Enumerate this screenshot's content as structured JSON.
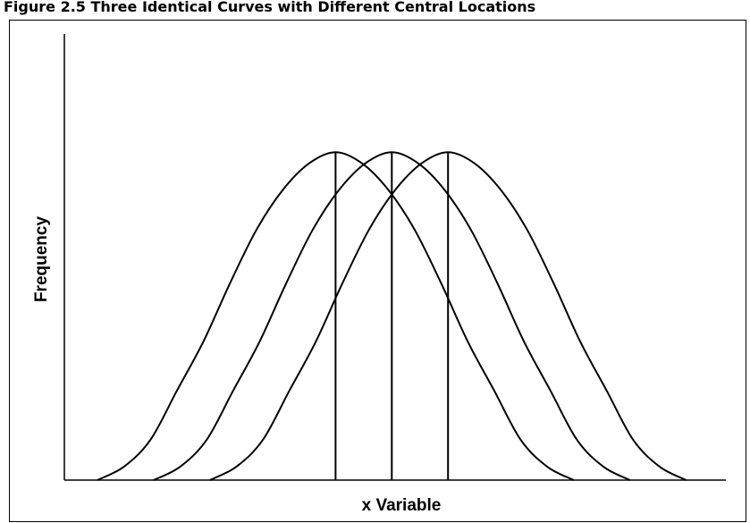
{
  "chart_data": {
    "type": "line",
    "title": "Figure 2.5 Three Identical Curves with Different Central Locations",
    "xlabel": "x Variable",
    "ylabel": "Frequency",
    "xlim": [
      0,
      100
    ],
    "ylim": [
      0,
      100
    ],
    "series": [
      {
        "color": "#000000",
        "x": [
          5,
          9,
          13,
          17,
          21,
          25,
          29,
          33,
          37,
          41,
          45,
          49,
          53,
          57,
          61,
          65,
          69,
          73,
          77
        ],
        "values": [
          0,
          3,
          9,
          20,
          31,
          44,
          56,
          65,
          71,
          73.5,
          71,
          65,
          56,
          44,
          31,
          20,
          9,
          3,
          0
        ]
      },
      {
        "color": "#000000",
        "x": [
          13.5,
          17.5,
          21.5,
          25.5,
          29.5,
          33.5,
          37.5,
          41.5,
          45.5,
          49.5,
          53.5,
          57.5,
          61.5,
          65.5,
          69.5,
          73.5,
          77.5,
          81.5,
          85.5
        ],
        "values": [
          0,
          3,
          9,
          20,
          31,
          44,
          56,
          65,
          71,
          73.5,
          71,
          65,
          56,
          44,
          31,
          20,
          9,
          3,
          0
        ]
      },
      {
        "color": "#000000",
        "x": [
          22,
          26,
          30,
          34,
          38,
          42,
          46,
          50,
          54,
          58,
          62,
          66,
          70,
          74,
          78,
          82,
          86,
          90,
          94
        ],
        "values": [
          0,
          3,
          9,
          20,
          31,
          44,
          56,
          65,
          71,
          73.5,
          71,
          65,
          56,
          44,
          31,
          20,
          9,
          3,
          0
        ]
      }
    ]
  }
}
